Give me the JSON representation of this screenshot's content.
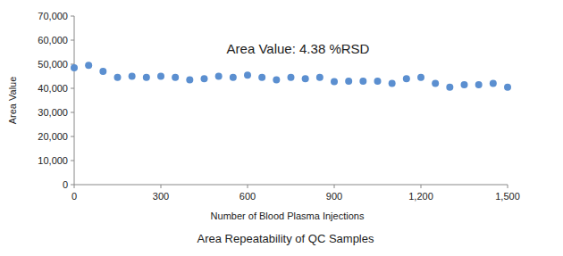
{
  "chart_data": {
    "type": "scatter",
    "title": "Area Repeatability of QC Samples",
    "x_label": "Number of Blood Plasma Injections",
    "y_label": "Area Value",
    "annotations": [
      "Area Value: 4.38 %RSD"
    ],
    "x": [
      0,
      50,
      100,
      150,
      200,
      250,
      300,
      350,
      400,
      450,
      500,
      550,
      600,
      650,
      700,
      750,
      800,
      850,
      900,
      950,
      1000,
      1050,
      1100,
      1150,
      1200,
      1250,
      1300,
      1350,
      1400,
      1450,
      1500
    ],
    "values": [
      48500,
      49500,
      47000,
      44500,
      45000,
      44500,
      45000,
      44500,
      43500,
      44000,
      45000,
      44500,
      45500,
      44500,
      43500,
      44500,
      44000,
      44500,
      42800,
      43000,
      43000,
      43000,
      42000,
      44000,
      44500,
      42000,
      40500,
      41500,
      41500,
      42000,
      40500
    ],
    "color": "#5b8fd0",
    "marker": "circle",
    "xlim": [
      0,
      1500
    ],
    "xticks": [
      0,
      300,
      600,
      900,
      {
        "value": 1200,
        "label": "1,200"
      },
      {
        "value": 1500,
        "label": "1,500"
      }
    ],
    "ylim": [
      0,
      70000
    ],
    "yticks": [
      0,
      {
        "value": 10000,
        "label": "10,000"
      },
      {
        "value": 20000,
        "label": "20,000"
      },
      {
        "value": 30000,
        "label": "30,000"
      },
      {
        "value": 40000,
        "label": "40,000"
      },
      {
        "value": 50000,
        "label": "50,000"
      },
      {
        "value": 60000,
        "label": "60,000"
      },
      {
        "value": 70000,
        "label": "70,000"
      }
    ],
    "grid": false
  }
}
